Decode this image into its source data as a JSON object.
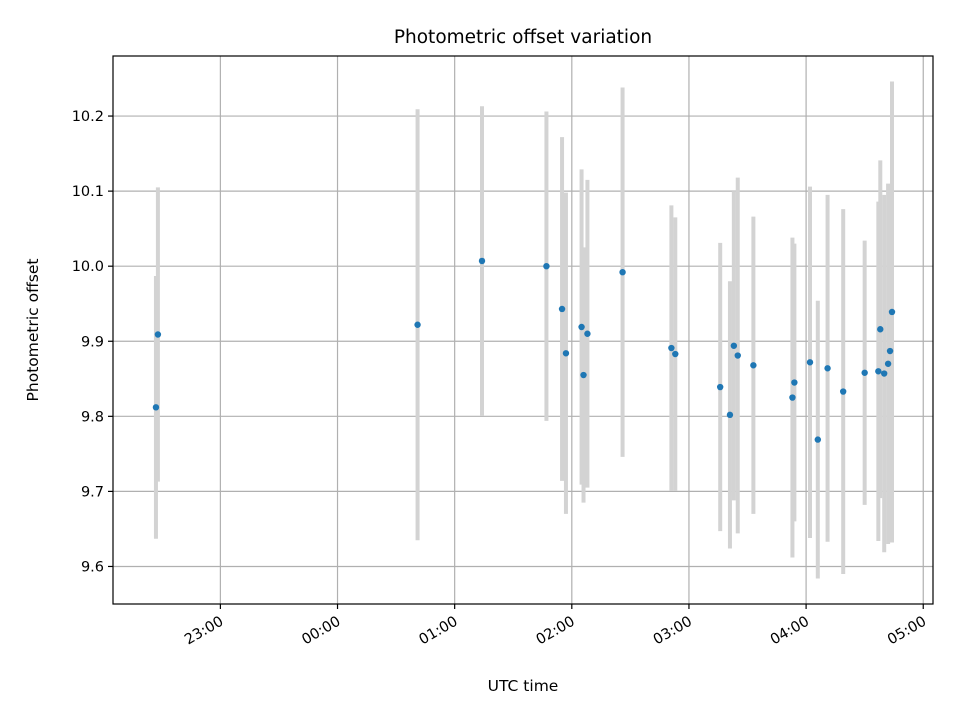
{
  "chart_data": {
    "type": "scatter",
    "title": "Photometric offset variation",
    "xlabel": "UTC time",
    "ylabel": "Photometric offset",
    "x_axis_kind": "time",
    "xlim": [
      "22:05",
      "05:05"
    ],
    "ylim": [
      9.55,
      10.28
    ],
    "x_ticks": [
      "23:00",
      "00:00",
      "01:00",
      "02:00",
      "03:00",
      "04:00",
      "05:00"
    ],
    "y_ticks": [
      "9.6",
      "9.7",
      "9.8",
      "9.9",
      "10.0",
      "10.1",
      "10.2"
    ],
    "grid": true,
    "legend": "none",
    "colors": {
      "points": "#1f77b4",
      "errorbars": "#d3d3d3",
      "grid": "#b0b0b0"
    },
    "points": [
      {
        "x": "22:27",
        "y": 9.812,
        "err": 0.175
      },
      {
        "x": "22:28",
        "y": 9.909,
        "err": 0.196
      },
      {
        "x": "00:41",
        "y": 9.922,
        "err": 0.287
      },
      {
        "x": "01:14",
        "y": 10.007,
        "err": 0.206
      },
      {
        "x": "01:47",
        "y": 10.0,
        "err": 0.206
      },
      {
        "x": "01:55",
        "y": 9.943,
        "err": 0.229
      },
      {
        "x": "01:57",
        "y": 9.884,
        "err": 0.214
      },
      {
        "x": "02:05",
        "y": 9.919,
        "err": 0.21
      },
      {
        "x": "02:06",
        "y": 9.855,
        "err": 0.17
      },
      {
        "x": "02:08",
        "y": 9.91,
        "err": 0.205
      },
      {
        "x": "02:26",
        "y": 9.992,
        "err": 0.246
      },
      {
        "x": "02:51",
        "y": 9.891,
        "err": 0.19
      },
      {
        "x": "02:53",
        "y": 9.883,
        "err": 0.182
      },
      {
        "x": "03:16",
        "y": 9.839,
        "err": 0.192
      },
      {
        "x": "03:21",
        "y": 9.802,
        "err": 0.178
      },
      {
        "x": "03:23",
        "y": 9.894,
        "err": 0.206
      },
      {
        "x": "03:25",
        "y": 9.881,
        "err": 0.237
      },
      {
        "x": "03:33",
        "y": 9.868,
        "err": 0.198
      },
      {
        "x": "03:53",
        "y": 9.825,
        "err": 0.213
      },
      {
        "x": "03:54",
        "y": 9.845,
        "err": 0.185
      },
      {
        "x": "04:02",
        "y": 9.872,
        "err": 0.234
      },
      {
        "x": "04:06",
        "y": 9.769,
        "err": 0.185
      },
      {
        "x": "04:11",
        "y": 9.864,
        "err": 0.231
      },
      {
        "x": "04:19",
        "y": 9.833,
        "err": 0.243
      },
      {
        "x": "04:30",
        "y": 9.858,
        "err": 0.176
      },
      {
        "x": "04:37",
        "y": 9.86,
        "err": 0.226
      },
      {
        "x": "04:38",
        "y": 9.916,
        "err": 0.225
      },
      {
        "x": "04:40",
        "y": 9.857,
        "err": 0.238
      },
      {
        "x": "04:42",
        "y": 9.87,
        "err": 0.24
      },
      {
        "x": "04:43",
        "y": 9.887,
        "err": 0.22
      },
      {
        "x": "04:44",
        "y": 9.939,
        "err": 0.307
      }
    ]
  }
}
